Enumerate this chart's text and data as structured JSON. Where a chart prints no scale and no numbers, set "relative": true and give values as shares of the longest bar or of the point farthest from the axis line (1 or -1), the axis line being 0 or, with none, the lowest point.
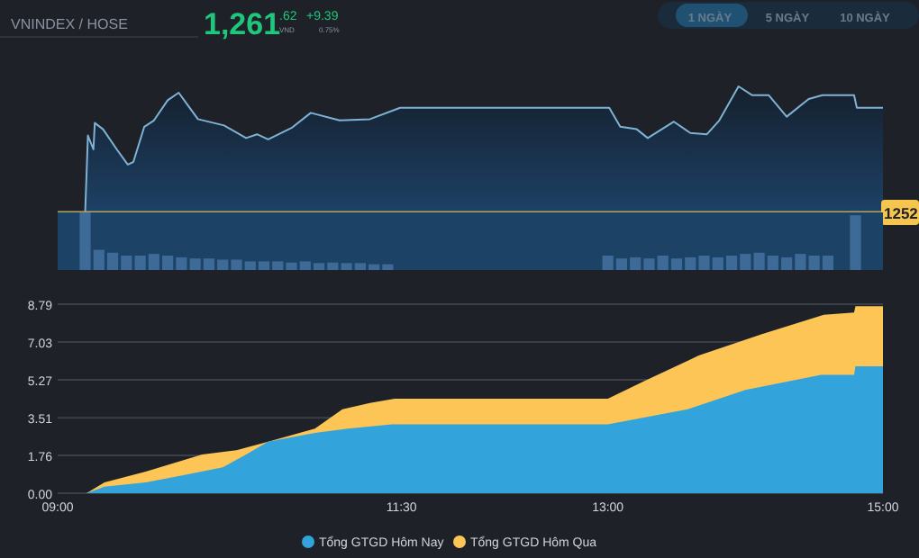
{
  "chart_data": [
    {
      "type": "area",
      "relative": true,
      "xlim": [
        9,
        15
      ],
      "annotations": [
        "VNINDEX / HOSE",
        "1,261",
        ".62",
        "VND",
        "+9.39",
        "0.75%",
        "1 NGÀY",
        "5 NGÀY",
        "10 NGÀY",
        "1252"
      ],
      "series": [
        {
          "color": "#7fb3d5",
          "x": [
            9.2,
            9.22,
            9.26,
            9.27,
            9.33,
            9.43,
            9.51,
            9.55,
            9.63,
            9.7,
            9.8,
            9.88,
            9.94,
            10.02,
            10.21,
            10.37,
            10.45,
            10.53,
            10.7,
            10.84,
            11.05,
            11.27,
            11.49,
            13.01,
            13.09,
            13.21,
            13.29,
            13.48,
            13.6,
            13.72,
            13.81,
            13.95,
            14.05,
            14.17,
            14.3,
            14.46,
            14.56,
            14.79,
            14.81,
            15
          ],
          "values": [
            0,
            0.61,
            0.5,
            0.71,
            0.66,
            0.5,
            0.38,
            0.4,
            0.68,
            0.73,
            0.89,
            0.95,
            0.86,
            0.74,
            0.69,
            0.59,
            0.62,
            0.58,
            0.67,
            0.79,
            0.73,
            0.74,
            0.83,
            0.83,
            0.68,
            0.66,
            0.59,
            0.72,
            0.63,
            0.62,
            0.73,
            1,
            0.93,
            0.93,
            0.76,
            0.9,
            0.93,
            0.93,
            0.83,
            0.83
          ]
        }
      ]
    },
    {
      "type": "bar",
      "relative": true,
      "xlim": [
        9,
        15
      ],
      "series": [
        {
          "color": "#3d6a96",
          "x": [
            9.2,
            9.3,
            9.4,
            9.5,
            9.6,
            9.7,
            9.8,
            9.9,
            10.0,
            10.1,
            10.2,
            10.3,
            10.4,
            10.5,
            10.6,
            10.7,
            10.8,
            10.9,
            11.0,
            11.1,
            11.2,
            11.3,
            11.4,
            13.0,
            13.1,
            13.2,
            13.3,
            13.4,
            13.5,
            13.6,
            13.7,
            13.8,
            13.9,
            14.0,
            14.1,
            14.2,
            14.3,
            14.4,
            14.5,
            14.6,
            14.8
          ],
          "values": [
            1,
            0.35,
            0.3,
            0.25,
            0.25,
            0.28,
            0.25,
            0.22,
            0.2,
            0.2,
            0.18,
            0.18,
            0.15,
            0.15,
            0.15,
            0.13,
            0.15,
            0.12,
            0.13,
            0.12,
            0.12,
            0.1,
            0.1,
            0.25,
            0.2,
            0.22,
            0.2,
            0.25,
            0.2,
            0.22,
            0.25,
            0.22,
            0.25,
            0.28,
            0.3,
            0.25,
            0.22,
            0.28,
            0.25,
            0.25,
            0.95
          ]
        }
      ]
    },
    {
      "type": "area",
      "xlim": [
        9,
        15
      ],
      "ylim": [
        0,
        8.79
      ],
      "yticks": [
        {
          "value": 0,
          "label": "0.00"
        },
        1.76,
        3.51,
        5.27,
        7.03,
        8.79
      ],
      "xticks": [
        {
          "value": 9,
          "label": "09:00"
        },
        {
          "value": 11.5,
          "label": "11:30"
        },
        {
          "value": 13,
          "label": "13:00"
        },
        {
          "value": 15,
          "label": "15:00"
        }
      ],
      "grid": "y",
      "legend": "bottom",
      "series": [
        {
          "name": "Tổng GTGD Hôm Qua",
          "color": "#fcc556",
          "x": [
            9.0,
            9.21,
            9.34,
            9.64,
            10.05,
            10.3,
            10.53,
            10.87,
            11.07,
            11.27,
            11.45,
            13.0,
            13.26,
            13.66,
            14.12,
            14.57,
            14.79,
            14.8,
            15.0
          ],
          "values": [
            0,
            0,
            0.5,
            1.0,
            1.8,
            2.0,
            2.4,
            3.0,
            3.9,
            4.2,
            4.4,
            4.4,
            5.2,
            6.4,
            7.4,
            8.3,
            8.4,
            8.7,
            8.7
          ]
        },
        {
          "name": "Tổng GTGD Hôm Nay",
          "color": "#33a3dc",
          "x": [
            9.0,
            9.21,
            9.34,
            9.64,
            9.88,
            10.2,
            10.37,
            10.53,
            10.87,
            11.11,
            11.43,
            13.0,
            13.58,
            14.0,
            14.55,
            14.79,
            14.8,
            15.0
          ],
          "values": [
            0,
            0,
            0.3,
            0.5,
            0.8,
            1.2,
            1.8,
            2.4,
            2.8,
            3.0,
            3.2,
            3.2,
            3.9,
            4.8,
            5.5,
            5.5,
            5.9,
            5.9
          ]
        }
      ]
    }
  ]
}
